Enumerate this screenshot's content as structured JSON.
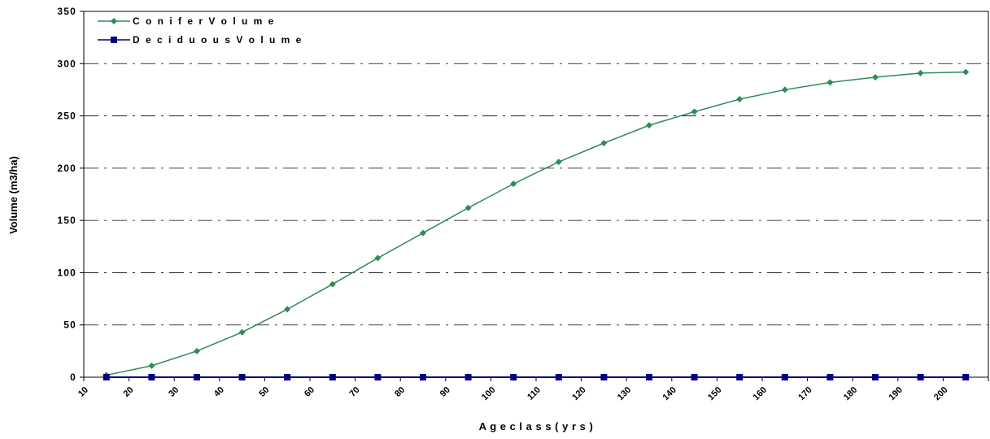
{
  "chart_data": {
    "type": "line",
    "categories": [
      "10",
      "20",
      "30",
      "40",
      "50",
      "60",
      "70",
      "80",
      "90",
      "100",
      "110",
      "120",
      "130",
      "140",
      "150",
      "160",
      "170",
      "180",
      "190",
      "200"
    ],
    "xlabel": "A g e c l a s s   ( y r s )",
    "ylabel": "Volume (m3/ha)",
    "ylim": [
      0,
      350
    ],
    "yticks": [
      0,
      50,
      100,
      150,
      200,
      250,
      300,
      350
    ],
    "ytick_labels": [
      "0",
      "50",
      "100",
      "150",
      "200",
      "250",
      "300",
      "350"
    ],
    "grid": "horizontal dash-dot",
    "legend_position": "top-left",
    "series": [
      {
        "name": "C o n i f e r   V o l u m e",
        "color": "#2e8b57",
        "marker": "diamond",
        "values": [
          2,
          11,
          25,
          43,
          65,
          89,
          114,
          138,
          162,
          185,
          206,
          224,
          241,
          254,
          266,
          275,
          282,
          287,
          291,
          292
        ]
      },
      {
        "name": "D e c i d u o u s   V o l u m e",
        "color": "#000080",
        "marker": "square",
        "values": [
          0,
          0,
          0,
          0,
          0,
          0,
          0,
          0,
          0,
          0,
          0,
          0,
          0,
          0,
          0,
          0,
          0,
          0,
          0,
          0
        ]
      }
    ]
  }
}
